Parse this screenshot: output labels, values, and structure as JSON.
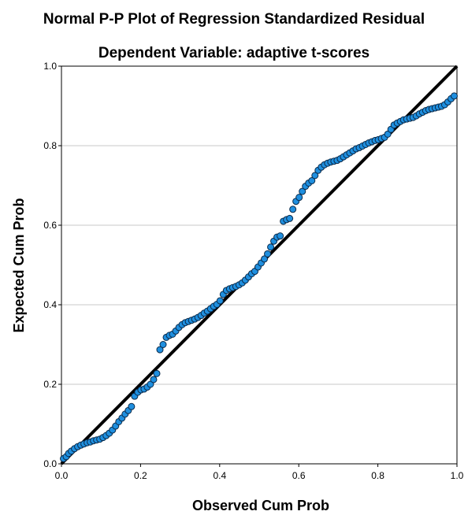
{
  "chart_data": {
    "type": "scatter",
    "title": "Normal P-P Plot of Regression Standardized Residual",
    "subtitle": "Dependent Variable: adaptive t-scores",
    "xlabel": "Observed Cum Prob",
    "ylabel": "Expected Cum Prob",
    "xlim": [
      0.0,
      1.0
    ],
    "ylim": [
      0.0,
      1.0
    ],
    "xticks": [
      "0.0",
      "0.2",
      "0.4",
      "0.6",
      "0.8",
      "1.0"
    ],
    "yticks": [
      "0.0",
      "0.2",
      "0.4",
      "0.6",
      "0.8",
      "1.0"
    ],
    "grid": "horizontal",
    "reference_line": [
      [
        0,
        0
      ],
      [
        1,
        1
      ]
    ],
    "point_color": "#1f8fdf",
    "point_stroke": "#0a2a4a",
    "line_color": "#000000",
    "points": [
      [
        0.005,
        0.013
      ],
      [
        0.012,
        0.018
      ],
      [
        0.018,
        0.026
      ],
      [
        0.025,
        0.032
      ],
      [
        0.033,
        0.038
      ],
      [
        0.041,
        0.043
      ],
      [
        0.049,
        0.047
      ],
      [
        0.057,
        0.05
      ],
      [
        0.065,
        0.053
      ],
      [
        0.073,
        0.055
      ],
      [
        0.081,
        0.058
      ],
      [
        0.089,
        0.06
      ],
      [
        0.097,
        0.062
      ],
      [
        0.105,
        0.066
      ],
      [
        0.113,
        0.071
      ],
      [
        0.121,
        0.077
      ],
      [
        0.129,
        0.085
      ],
      [
        0.137,
        0.095
      ],
      [
        0.145,
        0.106
      ],
      [
        0.153,
        0.115
      ],
      [
        0.161,
        0.125
      ],
      [
        0.169,
        0.134
      ],
      [
        0.177,
        0.144
      ],
      [
        0.185,
        0.17
      ],
      [
        0.193,
        0.18
      ],
      [
        0.201,
        0.186
      ],
      [
        0.209,
        0.188
      ],
      [
        0.217,
        0.193
      ],
      [
        0.225,
        0.2
      ],
      [
        0.233,
        0.212
      ],
      [
        0.241,
        0.227
      ],
      [
        0.249,
        0.287
      ],
      [
        0.257,
        0.3
      ],
      [
        0.265,
        0.318
      ],
      [
        0.273,
        0.323
      ],
      [
        0.281,
        0.326
      ],
      [
        0.289,
        0.334
      ],
      [
        0.297,
        0.343
      ],
      [
        0.305,
        0.35
      ],
      [
        0.313,
        0.355
      ],
      [
        0.321,
        0.358
      ],
      [
        0.329,
        0.361
      ],
      [
        0.337,
        0.364
      ],
      [
        0.345,
        0.368
      ],
      [
        0.353,
        0.373
      ],
      [
        0.361,
        0.379
      ],
      [
        0.369,
        0.384
      ],
      [
        0.377,
        0.39
      ],
      [
        0.385,
        0.396
      ],
      [
        0.393,
        0.401
      ],
      [
        0.401,
        0.41
      ],
      [
        0.409,
        0.426
      ],
      [
        0.417,
        0.436
      ],
      [
        0.425,
        0.44
      ],
      [
        0.433,
        0.443
      ],
      [
        0.441,
        0.446
      ],
      [
        0.449,
        0.45
      ],
      [
        0.457,
        0.455
      ],
      [
        0.465,
        0.462
      ],
      [
        0.473,
        0.47
      ],
      [
        0.481,
        0.478
      ],
      [
        0.489,
        0.484
      ],
      [
        0.497,
        0.495
      ],
      [
        0.505,
        0.505
      ],
      [
        0.513,
        0.515
      ],
      [
        0.521,
        0.528
      ],
      [
        0.529,
        0.545
      ],
      [
        0.537,
        0.56
      ],
      [
        0.545,
        0.57
      ],
      [
        0.553,
        0.573
      ],
      [
        0.561,
        0.61
      ],
      [
        0.569,
        0.614
      ],
      [
        0.577,
        0.617
      ],
      [
        0.585,
        0.64
      ],
      [
        0.593,
        0.66
      ],
      [
        0.601,
        0.67
      ],
      [
        0.609,
        0.685
      ],
      [
        0.617,
        0.698
      ],
      [
        0.625,
        0.706
      ],
      [
        0.633,
        0.712
      ],
      [
        0.641,
        0.725
      ],
      [
        0.649,
        0.738
      ],
      [
        0.657,
        0.746
      ],
      [
        0.665,
        0.752
      ],
      [
        0.673,
        0.756
      ],
      [
        0.681,
        0.759
      ],
      [
        0.689,
        0.761
      ],
      [
        0.697,
        0.763
      ],
      [
        0.705,
        0.767
      ],
      [
        0.713,
        0.772
      ],
      [
        0.721,
        0.777
      ],
      [
        0.729,
        0.782
      ],
      [
        0.737,
        0.787
      ],
      [
        0.745,
        0.792
      ],
      [
        0.753,
        0.795
      ],
      [
        0.761,
        0.799
      ],
      [
        0.769,
        0.803
      ],
      [
        0.777,
        0.807
      ],
      [
        0.785,
        0.81
      ],
      [
        0.793,
        0.813
      ],
      [
        0.801,
        0.815
      ],
      [
        0.809,
        0.818
      ],
      [
        0.817,
        0.821
      ],
      [
        0.825,
        0.829
      ],
      [
        0.833,
        0.841
      ],
      [
        0.841,
        0.852
      ],
      [
        0.849,
        0.857
      ],
      [
        0.857,
        0.861
      ],
      [
        0.865,
        0.865
      ],
      [
        0.873,
        0.867
      ],
      [
        0.881,
        0.869
      ],
      [
        0.889,
        0.871
      ],
      [
        0.897,
        0.875
      ],
      [
        0.905,
        0.88
      ],
      [
        0.913,
        0.884
      ],
      [
        0.921,
        0.888
      ],
      [
        0.929,
        0.891
      ],
      [
        0.937,
        0.893
      ],
      [
        0.945,
        0.895
      ],
      [
        0.953,
        0.897
      ],
      [
        0.961,
        0.899
      ],
      [
        0.969,
        0.903
      ],
      [
        0.977,
        0.91
      ],
      [
        0.985,
        0.918
      ],
      [
        0.993,
        0.925
      ]
    ]
  }
}
